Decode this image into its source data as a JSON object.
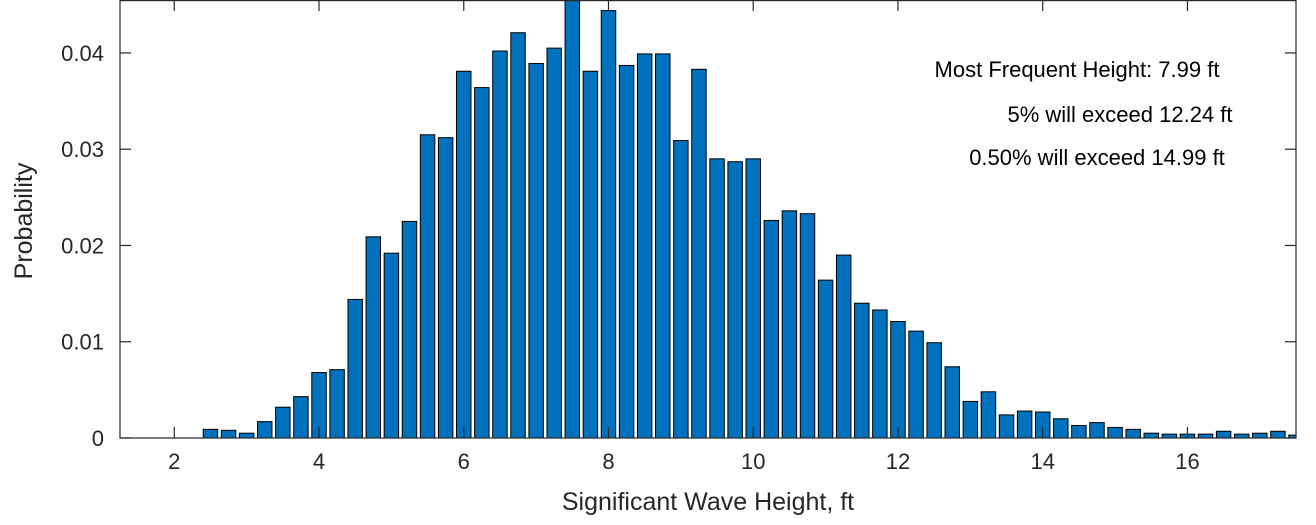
{
  "chart_data": {
    "type": "bar",
    "title": "",
    "xlabel": "Significant Wave Height, ft",
    "ylabel": "Probability",
    "xlim": [
      1.25,
      17.5
    ],
    "ylim": [
      0,
      0.0455
    ],
    "xticks": [
      2,
      4,
      6,
      8,
      10,
      12,
      14,
      16
    ],
    "yticks": [
      0,
      0.01,
      0.02,
      0.03,
      0.04
    ],
    "xtick_labels": [
      "2",
      "4",
      "6",
      "8",
      "10",
      "12",
      "14",
      "16"
    ],
    "ytick_labels": [
      "0",
      "0.01",
      "0.02",
      "0.03",
      "0.04"
    ],
    "bin_width": 0.25,
    "grid": false,
    "bar_color": "#0072BD",
    "edge_color": "#000000",
    "x": [
      2.5,
      2.75,
      3.0,
      3.25,
      3.5,
      3.75,
      4.0,
      4.25,
      4.5,
      4.75,
      5.0,
      5.25,
      5.5,
      5.75,
      6.0,
      6.25,
      6.5,
      6.75,
      7.0,
      7.25,
      7.5,
      7.75,
      8.0,
      8.25,
      8.5,
      8.75,
      9.0,
      9.25,
      9.5,
      9.75,
      10.0,
      10.25,
      10.5,
      10.75,
      11.0,
      11.25,
      11.5,
      11.75,
      12.0,
      12.25,
      12.5,
      12.75,
      13.0,
      13.25,
      13.5,
      13.75,
      14.0,
      14.25,
      14.5,
      14.75,
      15.0,
      15.25,
      15.5,
      15.75,
      16.0,
      16.25,
      16.5,
      16.75,
      17.0,
      17.25,
      17.5
    ],
    "values": [
      0.0009,
      0.0008,
      0.0005,
      0.0017,
      0.0032,
      0.0043,
      0.0068,
      0.0071,
      0.0144,
      0.0209,
      0.0192,
      0.0225,
      0.0315,
      0.0312,
      0.0381,
      0.0364,
      0.0402,
      0.0421,
      0.0389,
      0.0405,
      0.046,
      0.0381,
      0.0444,
      0.0387,
      0.0399,
      0.0399,
      0.0309,
      0.0383,
      0.029,
      0.0287,
      0.029,
      0.0226,
      0.0236,
      0.0233,
      0.0164,
      0.019,
      0.014,
      0.0133,
      0.0121,
      0.0111,
      0.0099,
      0.0074,
      0.0038,
      0.0048,
      0.0024,
      0.0028,
      0.0027,
      0.002,
      0.0013,
      0.0016,
      0.0011,
      0.0009,
      0.0005,
      0.0004,
      0.0004,
      0.0004,
      0.0007,
      0.0004,
      0.0005,
      0.0007,
      0.0003
    ],
    "annotations": [
      "Most Frequent Height: 7.99 ft",
      "5% will exceed 12.24 ft",
      "0.50% will exceed 14.99 ft"
    ]
  }
}
